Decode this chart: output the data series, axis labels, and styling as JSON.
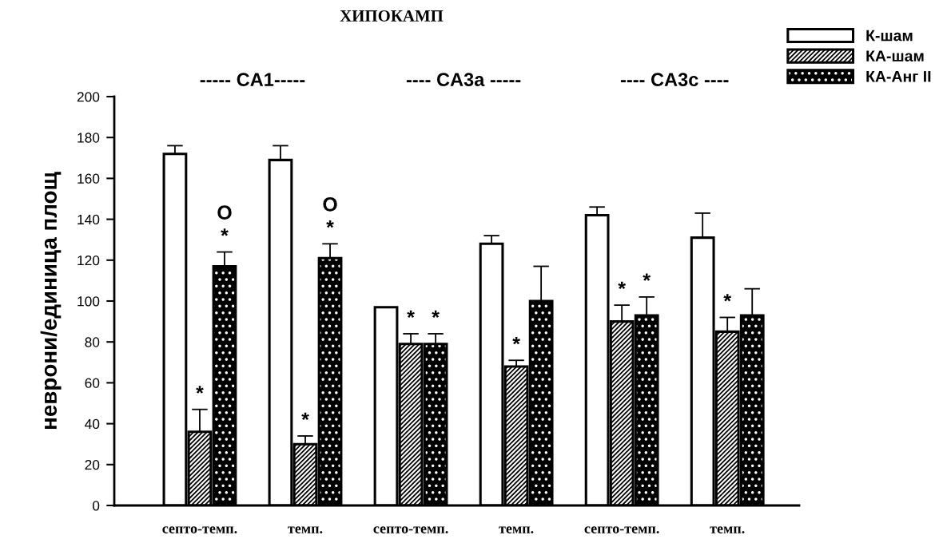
{
  "chart_data": {
    "type": "bar",
    "title": "ХИПОКАМП",
    "ylabel": "неврони/единица площ",
    "annotations": [
      "----- CA1-----",
      "---- CA3a -----",
      "---- CA3c ----"
    ],
    "categories": [
      "септо-темп.",
      "темп.",
      "септо-темп.",
      "темп.",
      "септо-темп.",
      "темп."
    ],
    "series": [
      {
        "name": "К-шам",
        "color": "#ffffff",
        "values": [
          172,
          169,
          97,
          128,
          142,
          131
        ],
        "errors": [
          [
            172,
            176
          ],
          [
            169,
            176
          ],
          null,
          [
            128,
            132
          ],
          [
            142,
            146
          ],
          [
            131,
            143
          ]
        ],
        "value_labels": [
          null,
          null,
          null,
          null,
          null,
          null
        ]
      },
      {
        "name": "КА-шам",
        "color": "#000000",
        "values": [
          36,
          30,
          79,
          68,
          90,
          85
        ],
        "errors": [
          [
            36,
            47
          ],
          [
            30,
            34
          ],
          [
            79,
            84
          ],
          [
            68,
            71
          ],
          [
            90,
            98
          ],
          [
            85,
            92
          ]
        ],
        "value_labels": [
          "*",
          "*",
          "*",
          "*",
          "*",
          "*"
        ]
      },
      {
        "name": "КА-Анг II",
        "color": "#000000",
        "values": [
          117,
          121,
          79,
          100,
          93,
          93
        ],
        "errors": [
          [
            117,
            124
          ],
          [
            121,
            128
          ],
          [
            79,
            84
          ],
          [
            100,
            117
          ],
          [
            93,
            102
          ],
          [
            93,
            106
          ]
        ],
        "value_labels": [
          "O\n*",
          "O\n*",
          "*",
          null,
          "*",
          null
        ]
      }
    ],
    "ylim": [
      0,
      200
    ],
    "yticks": [
      0,
      20,
      40,
      60,
      80,
      100,
      120,
      140,
      160,
      180,
      200
    ],
    "legend": "top right"
  }
}
